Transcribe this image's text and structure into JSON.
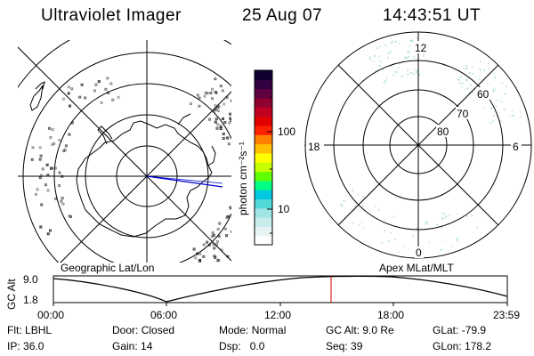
{
  "header": {
    "title": "Ultraviolet Imager",
    "date": "25 Aug 07",
    "time": "14:43:51 UT"
  },
  "colorbar": {
    "units_label": "photon cm⁻²s⁻¹",
    "tick_labels": [
      "100",
      "10"
    ],
    "colors": [
      "#ffffff",
      "#e8f4f4",
      "#c8ecec",
      "#a0e4e4",
      "#50d8d8",
      "#00c8e0",
      "#00ff80",
      "#60ff00",
      "#c8ff00",
      "#ffff00",
      "#ffc000",
      "#ff8000",
      "#ff2000",
      "#e00000",
      "#c00020",
      "#900030",
      "#600040",
      "#300040",
      "#100030"
    ]
  },
  "geo_panel": {
    "caption": "Geographic Lat/Lon"
  },
  "apex_panel": {
    "caption": "Apex MLat/MLT",
    "mlt_labels": {
      "top": "12",
      "left": "18",
      "right": "6",
      "bottom": "0"
    },
    "mlat_labels": [
      "60",
      "70",
      "80"
    ]
  },
  "altitude_plot": {
    "ylabel": "GC Alt",
    "y_ticks": [
      "9.0",
      "1.8"
    ],
    "x_ticks": [
      "00:00",
      "06:00",
      "12:00",
      "18:00",
      "23:59"
    ],
    "current_time_marker": "14:43:51"
  },
  "status": {
    "flt_label": "Flt:",
    "flt_value": "LBHL",
    "door_label": "Door:",
    "door_value": "Closed",
    "mode_label": "Mode:",
    "mode_value": "Normal",
    "gcalt_label": "GC Alt:",
    "gcalt_value": "9.0 Re",
    "glat_label": "GLat:",
    "glat_value": "-79.9",
    "ip_label": "IP:",
    "ip_value": "36.0",
    "gain_label": "Gain:",
    "gain_value": "14",
    "dsp_label": "Dsp:",
    "dsp_value": "0.0",
    "seq_label": "Seq:",
    "seq_value": "39",
    "glon_label": "GLon:",
    "glon_value": "178.2"
  },
  "colors": {
    "marker_red": "#cc0000",
    "terminator_blue": "#0000cc",
    "aurora_speckle": "#9fd8d0"
  }
}
